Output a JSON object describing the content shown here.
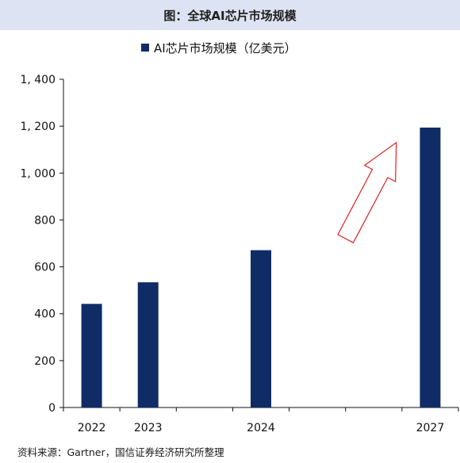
{
  "figure_title": "图：全球AI芯片市场规模",
  "source_note": "资料来源：Gartner，国信证券经济研究所整理",
  "chart_data": {
    "type": "bar",
    "categories": [
      "2022",
      "2023",
      "",
      "2024",
      "",
      "",
      "2027"
    ],
    "series": [
      {
        "name": "AI芯片市场规模（亿美元）",
        "values": [
          442,
          534,
          null,
          671,
          null,
          null,
          1194
        ],
        "color": "#0f2c66"
      }
    ],
    "ylim": [
      0,
      1400
    ],
    "yticks": [
      0,
      200,
      400,
      600,
      800,
      1000,
      1200,
      1400
    ],
    "ytick_labels": [
      "0",
      "200",
      "400",
      "600",
      "800",
      "1, 000",
      "1, 200",
      "1, 400"
    ],
    "xlabel": "",
    "ylabel": "",
    "grid": false,
    "legend_position": "top-center",
    "annotation": {
      "type": "arrow",
      "color": "#e02020",
      "from": {
        "category": "2024",
        "offset": 1.5,
        "value": 720
      },
      "to": {
        "category": "2027",
        "offset": -0.6,
        "value": 1130
      }
    }
  }
}
